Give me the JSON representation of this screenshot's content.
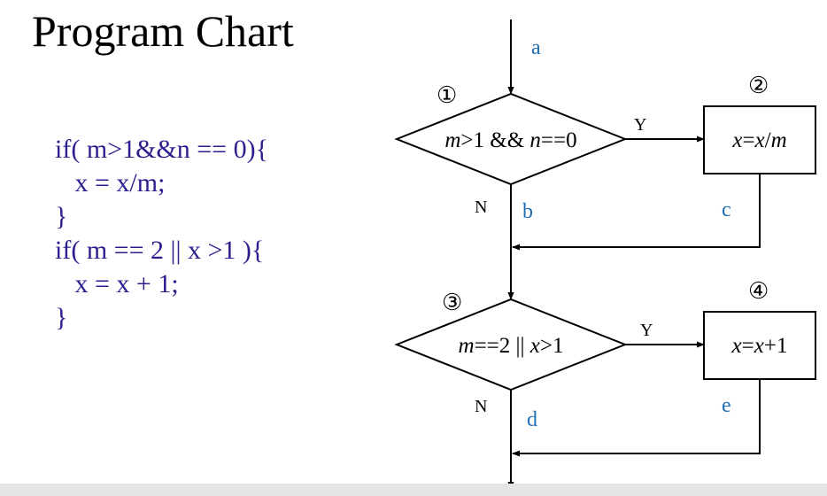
{
  "title": "Program Chart",
  "code_lines": [
    "if( m>1&&n == 0){",
    "   x = x/m;",
    "}",
    "if( m == 2 || x >1 ){",
    "   x = x + 1;",
    "}"
  ],
  "flowchart": {
    "decision1": {
      "number": "①",
      "prefix": "m",
      "mid": ">1 && ",
      "var2": "n",
      "suffix": "==0"
    },
    "process2": {
      "number": "②",
      "a": "x",
      "eq": "=",
      "b": "x",
      "slash": "/",
      "c": "m"
    },
    "decision3": {
      "number": "③",
      "a": "m",
      "mid": "==2 || ",
      "b": "x",
      "suffix": ">1"
    },
    "process4": {
      "number": "④",
      "a": "x",
      "eq": "=",
      "b": "x",
      "suffix": "+1"
    },
    "yes_label": "Y",
    "no_label": "N",
    "path_labels": {
      "a": "a",
      "b": "b",
      "c": "c",
      "d": "d",
      "e": "e"
    },
    "colors": {
      "path_label": "#1f6fb5",
      "code": "#2b1f8f",
      "lines": "#000000"
    }
  }
}
